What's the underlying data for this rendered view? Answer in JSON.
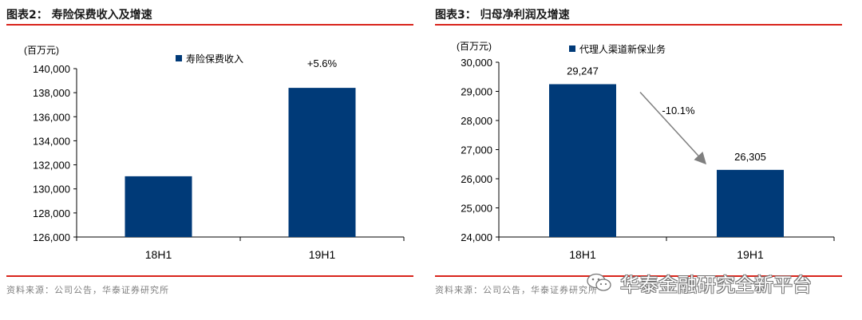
{
  "panels": [
    {
      "title": "图表2：  寿险保费收入及增速",
      "source": "资料来源：公司公告，华泰证券研究所"
    },
    {
      "title": "图表3：  归母净利润及增速",
      "source": "资料来源：公司公告，华泰证券研究所"
    }
  ],
  "watermark": {
    "text": "华泰金融研究全新平台",
    "icon": "wechat-icon"
  },
  "chart_data": [
    {
      "type": "bar",
      "unit_label": "(百万元)",
      "categories": [
        "18H1",
        "19H1"
      ],
      "series": [
        {
          "name": "寿险保费收入",
          "values": [
            131050,
            138400
          ],
          "color": "#003a78"
        }
      ],
      "ylim": [
        126000,
        140000
      ],
      "yticks": [
        126000,
        128000,
        130000,
        132000,
        134000,
        136000,
        138000,
        140000
      ],
      "ytick_labels": [
        "126,000",
        "128,000",
        "130,000",
        "132,000",
        "134,000",
        "136,000",
        "138,000",
        "140,000"
      ],
      "annotations": [
        {
          "text": "+5.6%",
          "category": "19H1"
        }
      ],
      "legend": "top",
      "grid": false
    },
    {
      "type": "bar",
      "unit_label": "(百万元)",
      "categories": [
        "18H1",
        "19H1"
      ],
      "series": [
        {
          "name": "代理人渠道新保业务",
          "values": [
            29247,
            26305
          ],
          "color": "#003a78"
        }
      ],
      "data_labels": [
        "29,247",
        "26,305"
      ],
      "ylim": [
        24000,
        30000
      ],
      "yticks": [
        24000,
        25000,
        26000,
        27000,
        28000,
        29000,
        30000
      ],
      "ytick_labels": [
        "24,000",
        "25,000",
        "26,000",
        "27,000",
        "28,000",
        "29,000",
        "30,000"
      ],
      "annotations": [
        {
          "text": "-10.1%",
          "from": "18H1",
          "to": "19H1"
        }
      ],
      "legend": "top",
      "grid": false
    }
  ]
}
